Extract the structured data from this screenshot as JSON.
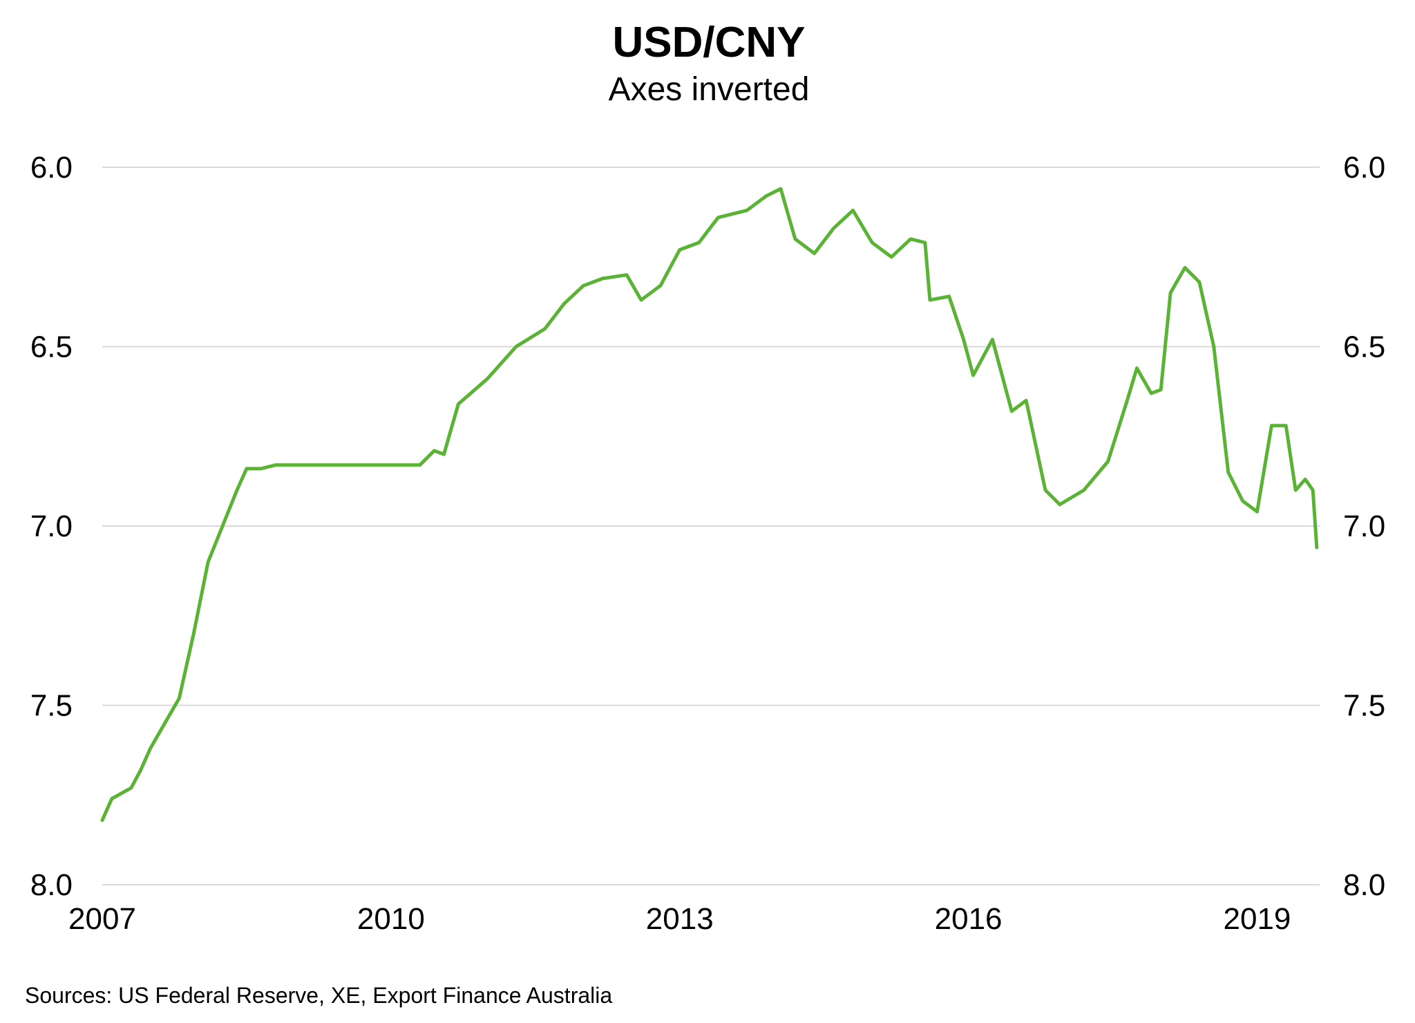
{
  "chart_data": {
    "type": "line",
    "title": "USD/CNY",
    "subtitle": "Axes inverted",
    "source": "Sources: US Federal Reserve, XE, Export Finance Australia",
    "xlabel": "",
    "ylabel": "",
    "x_ticks": [
      "2007",
      "2010",
      "2013",
      "2016",
      "2019"
    ],
    "x_tick_values": [
      2007,
      2010,
      2013,
      2016,
      2019
    ],
    "y_ticks": [
      "6.0",
      "6.5",
      "7.0",
      "7.5",
      "8.0"
    ],
    "y_tick_values": [
      6.0,
      6.5,
      7.0,
      7.5,
      8.0
    ],
    "xlim": [
      2007,
      2019.65
    ],
    "ylim": [
      6.0,
      8.0
    ],
    "y_inverted": true,
    "y_axis_sides": [
      "left",
      "right"
    ],
    "grid": "horizontal",
    "line_color": "#5BB336",
    "series": [
      {
        "x": [
          2007.0,
          2007.1,
          2007.3,
          2007.4,
          2007.5,
          2007.65,
          2007.8,
          2007.95,
          2008.1,
          2008.25,
          2008.4,
          2008.5,
          2008.65,
          2008.8,
          2009.0,
          2009.3,
          2009.6,
          2010.0,
          2010.3,
          2010.45,
          2010.55,
          2010.7,
          2011.0,
          2011.3,
          2011.6,
          2011.8,
          2012.0,
          2012.2,
          2012.45,
          2012.6,
          2012.8,
          2013.0,
          2013.2,
          2013.4,
          2013.7,
          2013.9,
          2014.05,
          2014.2,
          2014.4,
          2014.6,
          2014.8,
          2015.0,
          2015.2,
          2015.4,
          2015.55,
          2015.6,
          2015.8,
          2015.95,
          2016.05,
          2016.25,
          2016.45,
          2016.6,
          2016.8,
          2016.95,
          2017.2,
          2017.45,
          2017.65,
          2017.75,
          2017.9,
          2018.0,
          2018.1,
          2018.25,
          2018.4,
          2018.55,
          2018.7,
          2018.85,
          2019.0,
          2019.15,
          2019.3,
          2019.4,
          2019.5,
          2019.58,
          2019.62
        ],
        "y": [
          7.82,
          7.76,
          7.73,
          7.68,
          7.62,
          7.55,
          7.48,
          7.3,
          7.1,
          7.0,
          6.9,
          6.84,
          6.84,
          6.83,
          6.83,
          6.83,
          6.83,
          6.83,
          6.83,
          6.79,
          6.8,
          6.66,
          6.59,
          6.5,
          6.45,
          6.38,
          6.33,
          6.31,
          6.3,
          6.37,
          6.33,
          6.23,
          6.21,
          6.14,
          6.12,
          6.08,
          6.06,
          6.2,
          6.24,
          6.17,
          6.12,
          6.21,
          6.25,
          6.2,
          6.21,
          6.37,
          6.36,
          6.48,
          6.58,
          6.48,
          6.68,
          6.65,
          6.9,
          6.94,
          6.9,
          6.82,
          6.65,
          6.56,
          6.63,
          6.62,
          6.35,
          6.28,
          6.32,
          6.5,
          6.85,
          6.93,
          6.96,
          6.72,
          6.72,
          6.9,
          6.87,
          6.9,
          7.06
        ]
      }
    ]
  }
}
